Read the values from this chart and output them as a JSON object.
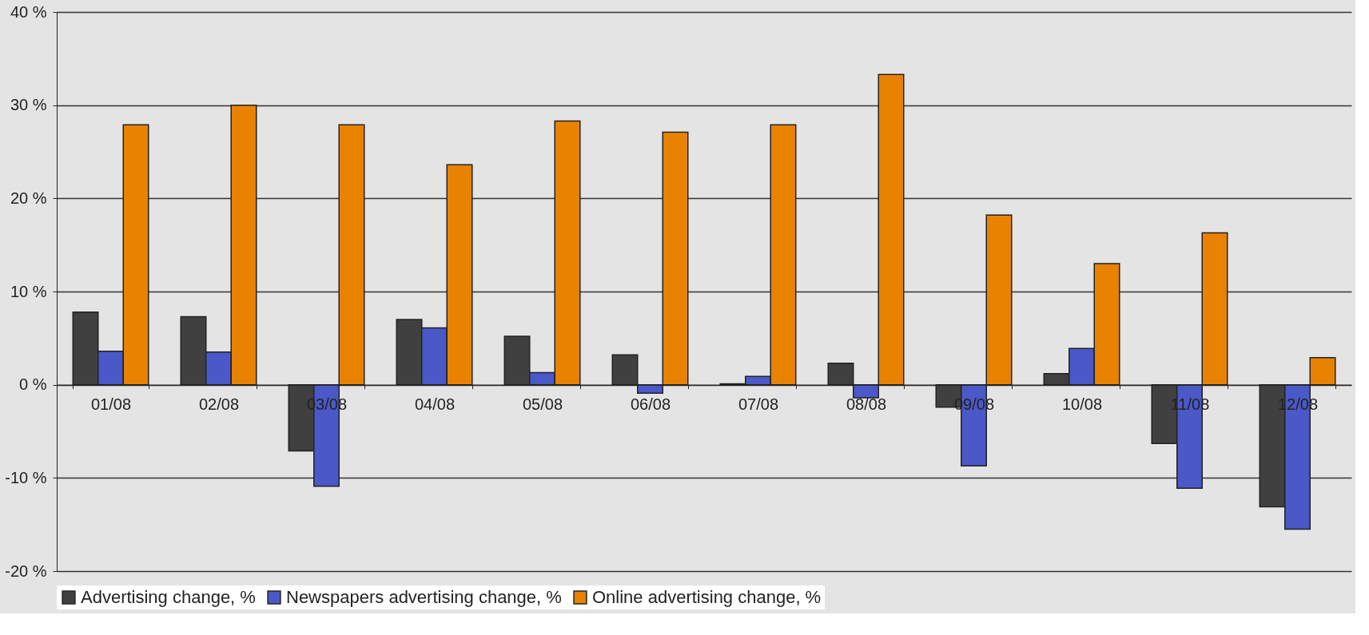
{
  "chart_data": {
    "type": "bar",
    "categories": [
      "01/08",
      "02/08",
      "03/08",
      "04/08",
      "05/08",
      "06/08",
      "07/08",
      "08/08",
      "09/08",
      "10/08",
      "11/08",
      "12/08"
    ],
    "series": [
      {
        "name": "Advertising change, %",
        "color": "#404040",
        "values": [
          7.8,
          7.3,
          -7.1,
          7.0,
          5.2,
          3.2,
          0.1,
          2.3,
          -2.4,
          1.2,
          -6.3,
          -13.1
        ]
      },
      {
        "name": "Newspapers advertising change, %",
        "color": "#4a58c8",
        "values": [
          3.6,
          3.5,
          -10.9,
          6.1,
          1.3,
          -0.9,
          0.9,
          -1.4,
          -8.7,
          3.9,
          -11.1,
          -15.5
        ]
      },
      {
        "name": "Online advertising change, %",
        "color": "#e88200",
        "values": [
          27.9,
          30.0,
          27.9,
          23.6,
          28.3,
          27.1,
          27.9,
          33.3,
          18.2,
          13.0,
          16.3,
          2.9
        ]
      }
    ],
    "ylim": [
      -20,
      40
    ],
    "yticks": [
      {
        "value": -20,
        "label": "-20 %"
      },
      {
        "value": -10,
        "label": "-10 %"
      },
      {
        "value": 0,
        "label": "0 %"
      },
      {
        "value": 10,
        "label": "10 %"
      },
      {
        "value": 20,
        "label": "20 %"
      },
      {
        "value": 30,
        "label": "30 %"
      },
      {
        "value": 40,
        "label": "40 %"
      }
    ],
    "grid": "y",
    "legend": "bottom"
  }
}
